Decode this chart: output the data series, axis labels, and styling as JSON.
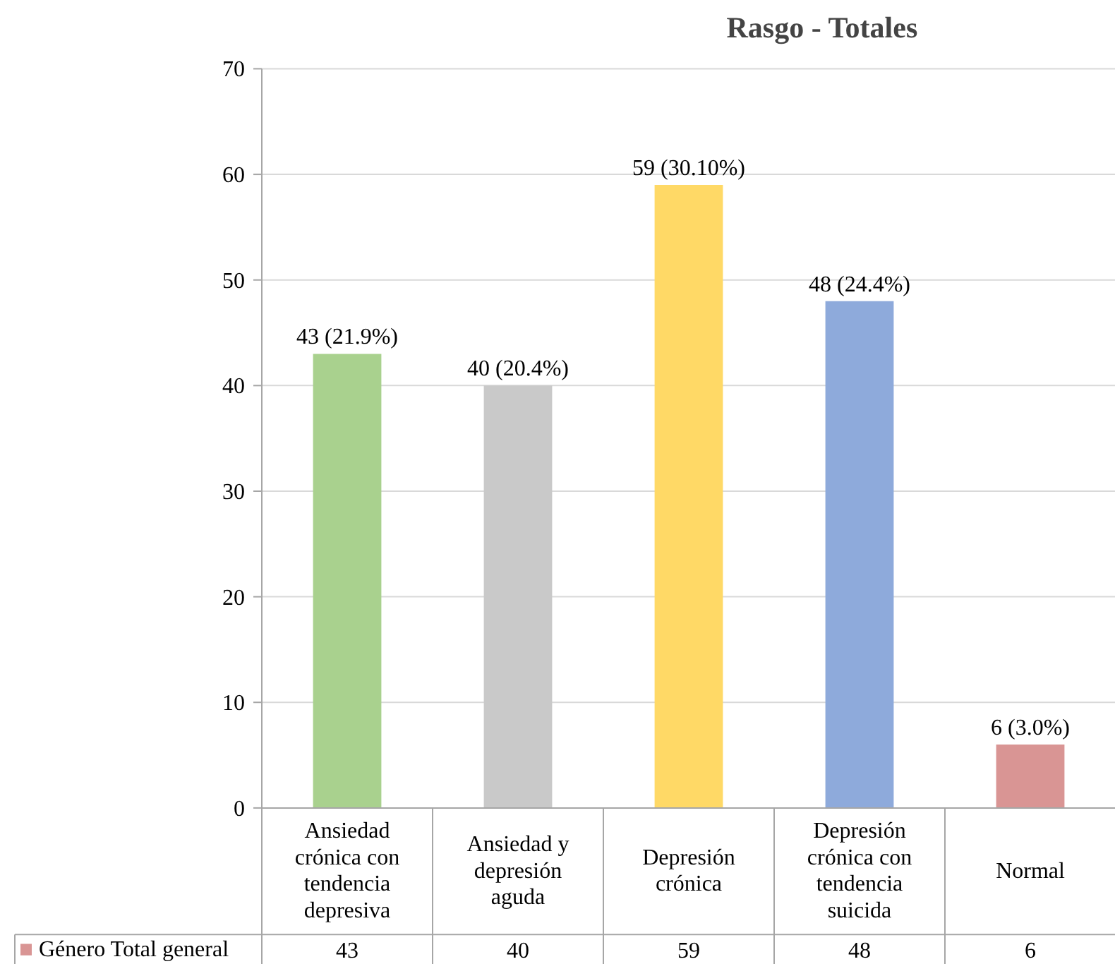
{
  "chart_data": {
    "type": "bar",
    "title": "Rasgo - Totales",
    "categories": [
      "Ansiedad crónica con tendencia depresiva",
      "Ansiedad y depresión aguda",
      "Depresión crónica",
      "Depresión crónica con tendencia suicida",
      "Normal"
    ],
    "series": [
      {
        "name": "Género Total general",
        "color": "#d99594",
        "colors": [
          "#a9d18e",
          "#c9c9c9",
          "#ffd966",
          "#8eaadb",
          "#d99594"
        ],
        "values": [
          43,
          40,
          59,
          48,
          6
        ],
        "value_labels": [
          "43 (21.9%)",
          "40 (20.4%)",
          "59 (30.10%)",
          "48 (24.4%)",
          "6 (3.0%)"
        ]
      }
    ],
    "ylim": [
      0,
      70
    ],
    "yticks": [
      0,
      10,
      20,
      30,
      40,
      50,
      60,
      70
    ],
    "annotations": [
      "43",
      "40",
      "59",
      "48",
      "6"
    ],
    "grid": "y",
    "legend": "bottom left"
  }
}
